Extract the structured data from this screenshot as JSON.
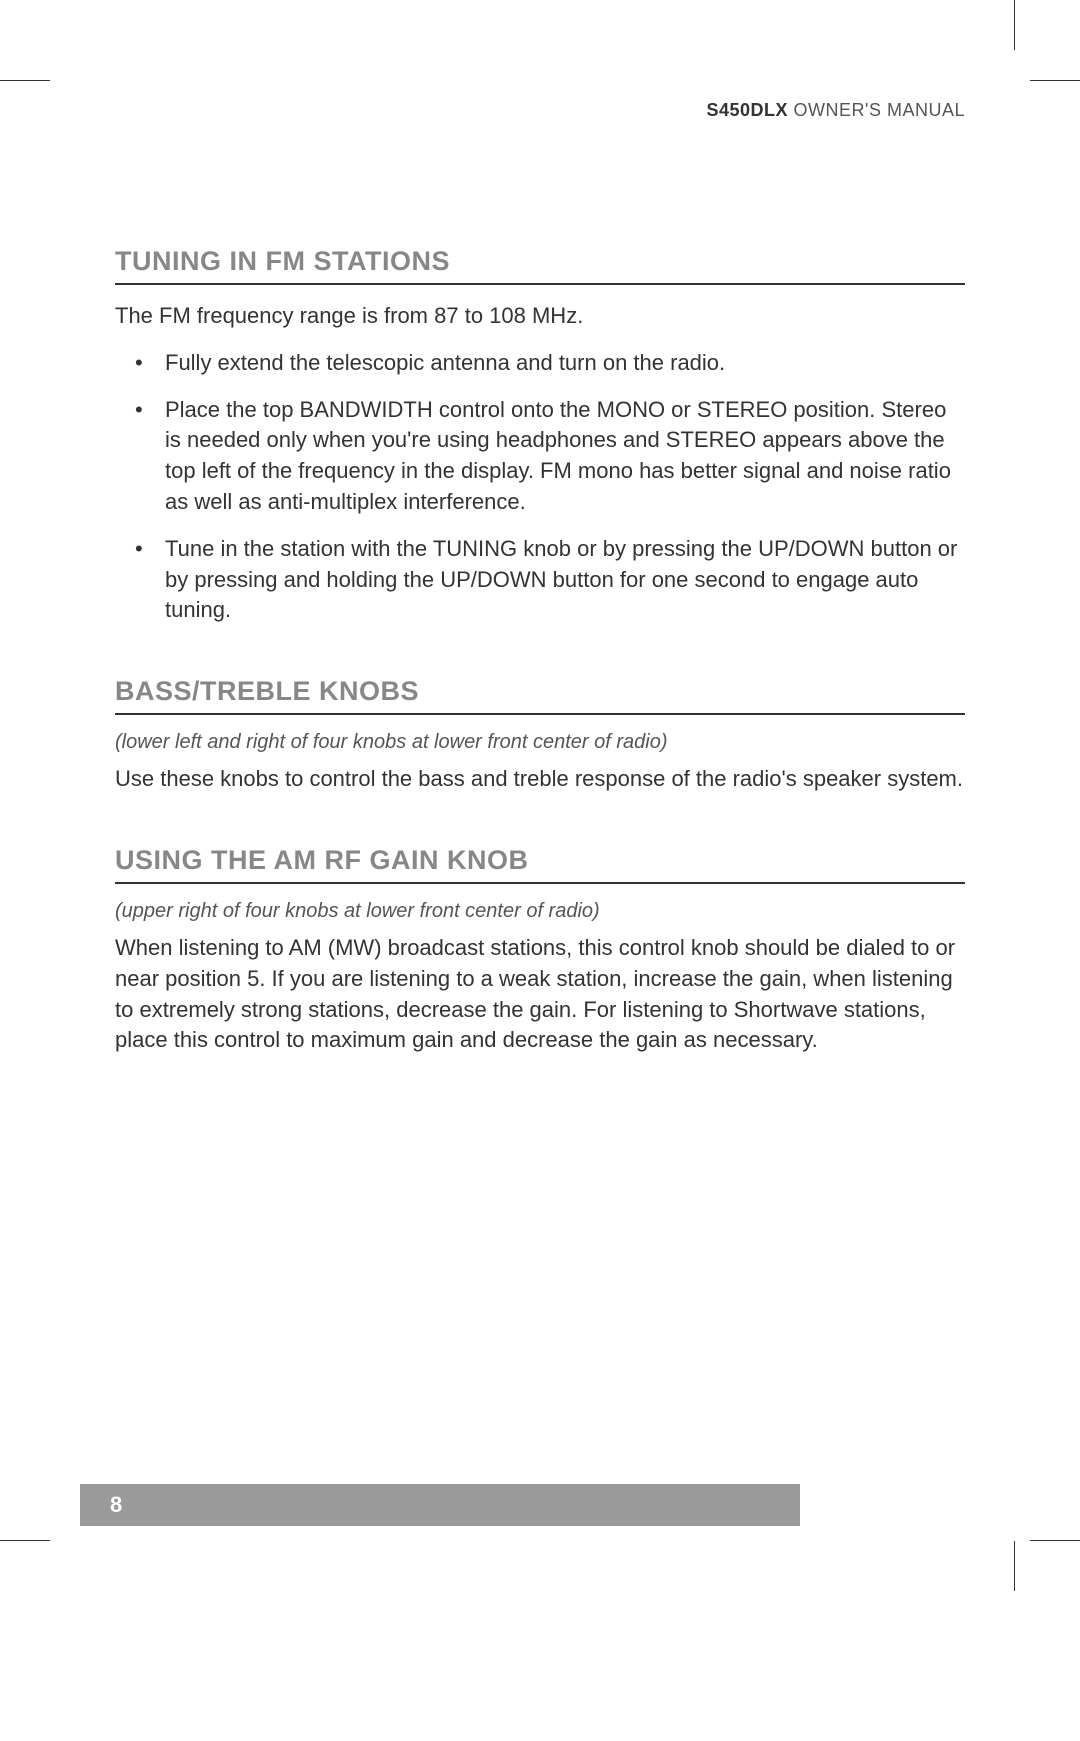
{
  "header": {
    "model": "S450DLX",
    "manual_label": "OWNER'S MANUAL"
  },
  "sections": {
    "fm": {
      "title": "TUNING IN FM STATIONS",
      "intro": "The FM frequency range is from 87 to 108 MHz.",
      "bullets": [
        "Fully extend the telescopic antenna and turn on the radio.",
        "Place the top BANDWIDTH control onto the MONO or STEREO position. Stereo is needed only when you're using headphones and STEREO appears above the top left of the frequency in the display. FM mono has better signal and noise ratio as well as anti-multiplex interference.",
        "Tune in the station with the TUNING knob or by pressing the UP/DOWN button or by pressing and holding the UP/DOWN button for one second to engage auto tuning."
      ]
    },
    "bass": {
      "title": "BASS/TREBLE KNOBS",
      "note": "(lower left and right of four knobs at lower front center of radio)",
      "body": "Use these knobs to control the bass and treble response of the radio's speaker system."
    },
    "rfgain": {
      "title": "USING THE AM RF GAIN KNOB",
      "note": "(upper right of four knobs at lower front center of radio)",
      "body": "When listening to AM (MW) broadcast stations, this control knob should be dialed to or near position 5. If you are listening to a weak station, increase the gain, when listening to extremely strong stations, decrease the gain. For listening to Shortwave stations, place this control to maximum gain and decrease the gain as necessary."
    }
  },
  "page_number": "8",
  "style": {
    "heading_color": "#878787",
    "text_color": "#333333",
    "rule_color": "#333333",
    "page_bar_bg": "#9a9a9a",
    "page_bar_text": "#ffffff",
    "body_fontsize": 22,
    "heading_fontsize": 27,
    "note_fontsize": 20
  }
}
